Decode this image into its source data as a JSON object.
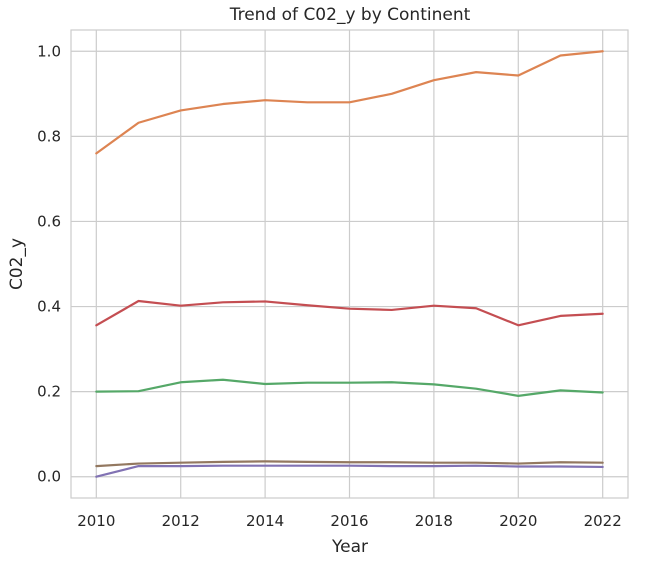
{
  "chart_data": {
    "type": "line",
    "title": "Trend of C02_y by Continent",
    "xlabel": "Year",
    "ylabel": "C02_y",
    "x": [
      2010,
      2011,
      2012,
      2013,
      2014,
      2015,
      2016,
      2017,
      2018,
      2019,
      2020,
      2021,
      2022
    ],
    "xticks": [
      2010,
      2012,
      2014,
      2016,
      2018,
      2020,
      2022
    ],
    "yticks": [
      0.0,
      0.2,
      0.4,
      0.6,
      0.8,
      1.0
    ],
    "ytick_labels": [
      "0.0",
      "0.2",
      "0.4",
      "0.6",
      "0.8",
      "1.0"
    ],
    "xlim": [
      2009.4,
      2022.6
    ],
    "ylim": [
      -0.05,
      1.05
    ],
    "grid": true,
    "series": [
      {
        "color": "#dd8452",
        "values": [
          0.76,
          0.832,
          0.861,
          0.876,
          0.885,
          0.88,
          0.88,
          0.9,
          0.932,
          0.951,
          0.943,
          0.99,
          1.0
        ]
      },
      {
        "color": "#c44e52",
        "values": [
          0.356,
          0.413,
          0.402,
          0.41,
          0.412,
          0.403,
          0.395,
          0.392,
          0.402,
          0.396,
          0.356,
          0.378,
          0.383
        ]
      },
      {
        "color": "#55a868",
        "values": [
          0.2,
          0.201,
          0.222,
          0.228,
          0.218,
          0.221,
          0.221,
          0.222,
          0.217,
          0.207,
          0.19,
          0.203,
          0.198
        ]
      },
      {
        "color": "#937860",
        "values": [
          0.025,
          0.031,
          0.033,
          0.035,
          0.036,
          0.035,
          0.034,
          0.034,
          0.033,
          0.033,
          0.031,
          0.034,
          0.033
        ]
      },
      {
        "color": "#8172b3",
        "values": [
          0.0,
          0.025,
          0.025,
          0.026,
          0.026,
          0.026,
          0.026,
          0.025,
          0.025,
          0.026,
          0.024,
          0.024,
          0.023
        ]
      }
    ]
  }
}
